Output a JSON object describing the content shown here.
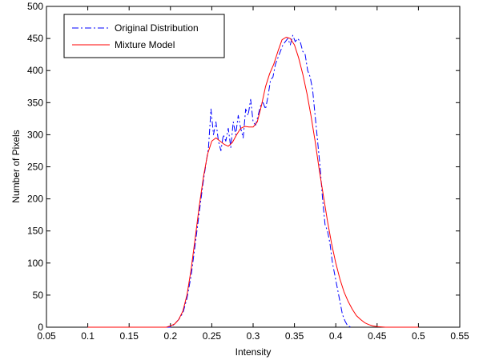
{
  "chart_data": {
    "type": "line",
    "xlabel": "Intensity",
    "ylabel": "Number of Pixels",
    "xlim": [
      0.05,
      0.55
    ],
    "ylim": [
      0,
      500
    ],
    "xticks": [
      "0.05",
      "0.1",
      "0.15",
      "0.2",
      "0.25",
      "0.3",
      "0.35",
      "0.4",
      "0.45",
      "0.5",
      "0.55"
    ],
    "yticks": [
      "0",
      "50",
      "100",
      "150",
      "200",
      "250",
      "300",
      "350",
      "400",
      "450",
      "500"
    ],
    "grid": false,
    "legend_position": "top-left",
    "series": [
      {
        "name": "Original Distribution",
        "color": "#0000ff",
        "style": "dash-dot",
        "x": [
          0.1,
          0.2,
          0.205,
          0.21,
          0.215,
          0.22,
          0.225,
          0.23,
          0.235,
          0.24,
          0.243,
          0.246,
          0.249,
          0.252,
          0.255,
          0.258,
          0.261,
          0.264,
          0.267,
          0.27,
          0.273,
          0.276,
          0.279,
          0.282,
          0.285,
          0.288,
          0.291,
          0.294,
          0.297,
          0.3,
          0.303,
          0.306,
          0.309,
          0.312,
          0.315,
          0.318,
          0.321,
          0.324,
          0.327,
          0.33,
          0.333,
          0.336,
          0.339,
          0.342,
          0.345,
          0.348,
          0.351,
          0.354,
          0.357,
          0.36,
          0.363,
          0.366,
          0.369,
          0.372,
          0.375,
          0.378,
          0.381,
          0.384,
          0.387,
          0.39,
          0.393,
          0.396,
          0.399,
          0.402,
          0.405,
          0.408,
          0.411,
          0.414,
          0.418
        ],
        "y": [
          0,
          0,
          5,
          12,
          22,
          45,
          80,
          130,
          180,
          230,
          255,
          280,
          340,
          300,
          320,
          290,
          275,
          300,
          290,
          310,
          280,
          320,
          300,
          330,
          310,
          295,
          340,
          330,
          355,
          320,
          315,
          330,
          345,
          350,
          340,
          360,
          385,
          390,
          410,
          420,
          430,
          440,
          445,
          450,
          440,
          455,
          445,
          450,
          445,
          430,
          425,
          400,
          390,
          370,
          330,
          290,
          250,
          200,
          160,
          150,
          130,
          100,
          80,
          60,
          40,
          20,
          10,
          3,
          0
        ]
      },
      {
        "name": "Mixture Model",
        "color": "#ff0000",
        "style": "solid",
        "x": [
          0.1,
          0.195,
          0.2,
          0.205,
          0.21,
          0.215,
          0.22,
          0.225,
          0.23,
          0.235,
          0.24,
          0.245,
          0.25,
          0.255,
          0.26,
          0.265,
          0.27,
          0.275,
          0.28,
          0.285,
          0.29,
          0.295,
          0.3,
          0.305,
          0.31,
          0.315,
          0.32,
          0.325,
          0.33,
          0.335,
          0.34,
          0.345,
          0.35,
          0.355,
          0.36,
          0.365,
          0.37,
          0.375,
          0.38,
          0.385,
          0.39,
          0.395,
          0.4,
          0.405,
          0.41,
          0.415,
          0.42,
          0.425,
          0.43,
          0.435,
          0.44,
          0.445,
          0.45,
          0.46,
          0.5
        ],
        "y": [
          0,
          0,
          2,
          5,
          12,
          25,
          50,
          90,
          140,
          190,
          235,
          270,
          290,
          295,
          290,
          285,
          282,
          288,
          300,
          310,
          313,
          312,
          312,
          320,
          345,
          375,
          395,
          410,
          430,
          448,
          452,
          450,
          440,
          420,
          395,
          365,
          330,
          290,
          245,
          205,
          165,
          130,
          100,
          75,
          55,
          40,
          28,
          18,
          12,
          7,
          4,
          2,
          1,
          0,
          0
        ]
      }
    ]
  }
}
